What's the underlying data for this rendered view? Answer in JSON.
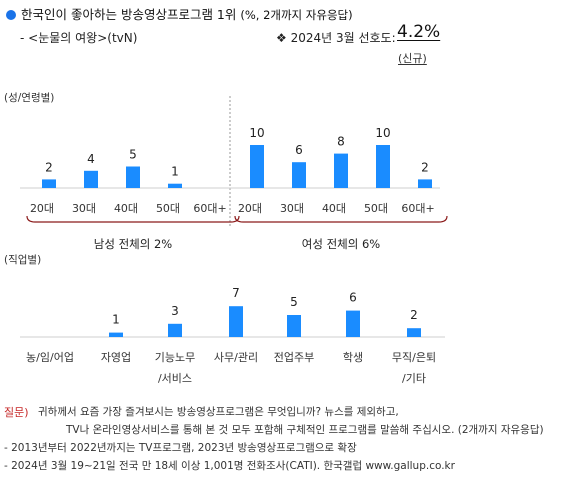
{
  "header": {
    "title": "한국인이 좋아하는 방송영상프로그램 1위",
    "title_sub": "(%, 2개까지 자유응답)",
    "program": "- <눈물의 여왕>(tvN)",
    "rating_label": "❖ 2024년 3월 선호도:",
    "rating_value": "4.2%",
    "new_badge": "(신규)"
  },
  "colors": {
    "bar": "#1a8cff",
    "accent": "#1a73e8",
    "bracket": "#8b1a1a",
    "question": "#c62828"
  },
  "chart_data": [
    {
      "type": "bar",
      "title": "(성/연령별)",
      "groups": [
        {
          "name": "남성 전체의 2%",
          "categories": [
            "20대",
            "30대",
            "40대",
            "50대",
            "60대+"
          ],
          "values": [
            2,
            4,
            5,
            1,
            0
          ]
        },
        {
          "name": "여성 전체의 6%",
          "categories": [
            "20대",
            "30대",
            "40대",
            "50대",
            "60대+"
          ],
          "values": [
            10,
            6,
            8,
            10,
            2
          ]
        }
      ]
    },
    {
      "type": "bar",
      "title": "(직업별)",
      "categories": [
        "농/임/어업",
        "자영업",
        "기능노무\n/서비스",
        "사무/관리",
        "전업주부",
        "학생",
        "무직/은퇴\n/기타"
      ],
      "values": [
        null,
        1,
        3,
        7,
        5,
        6,
        2
      ]
    }
  ],
  "footer": {
    "q_label": "질문)",
    "q_line1": "귀하께서 요즘 가장 즐겨보시는 방송영상프로그램은 무엇입니까? 뉴스를 제외하고,",
    "q_line2": "TV나 온라인영상서비스를 통해 본 것 모두 포함해 구체적인 프로그램를 말씀해 주십시오. (2개까지 자유응답)",
    "note1": "- 2013년부터 2022년까지는 TV프로그램, 2023년 방송영상프로그램으로 확장",
    "note2": "- 2024년 3월 19~21일 전국 만 18세 이상 1,001명 전화조사(CATI). 한국갤럽 www.gallup.co.kr"
  }
}
